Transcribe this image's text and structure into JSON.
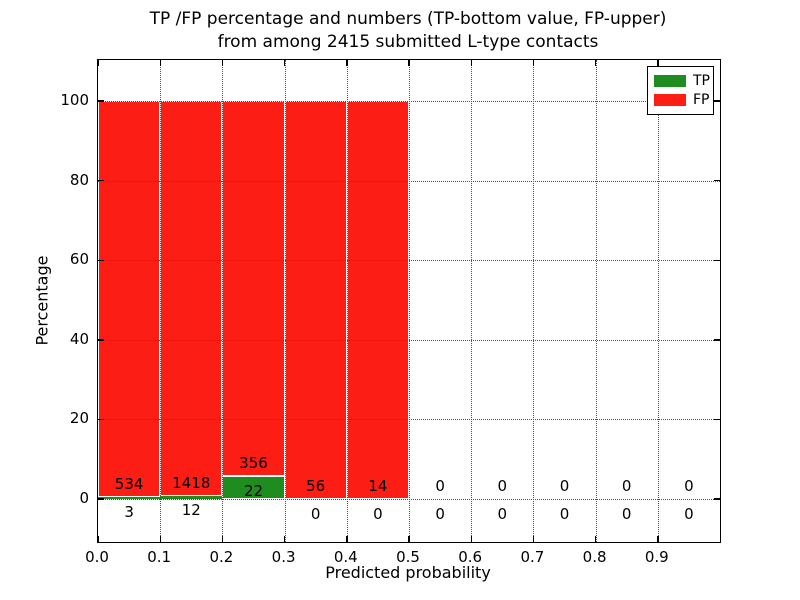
{
  "title": {
    "line1": "TP /FP percentage and numbers (TP-bottom value, FP-upper)",
    "line2": "from among 2415 submitted L-type contacts"
  },
  "axes": {
    "xlabel": "Predicted probability",
    "ylabel": "Percentage"
  },
  "chart_data": {
    "type": "bar",
    "stacked": true,
    "title": "TP /FP percentage and numbers (TP-bottom value, FP-upper) from among 2415 submitted L-type contacts",
    "xlabel": "Predicted probability",
    "ylabel": "Percentage",
    "total_submitted_contacts": 2415,
    "xlim": [
      0.0,
      1.0
    ],
    "ylim": [
      -10.8,
      110.3
    ],
    "x_ticks": [
      0.0,
      0.1,
      0.2,
      0.3,
      0.4,
      0.5,
      0.6,
      0.7,
      0.8,
      0.9
    ],
    "y_ticks": [
      0,
      20,
      40,
      60,
      80,
      100
    ],
    "grid": "dotted",
    "bin_width": 0.1,
    "annotation_note": "FP count printed above baseline, TP count printed below",
    "bins": [
      {
        "range": "0.0-0.1",
        "tp_count": 3,
        "fp_count": 534,
        "tp_pct": 0.56,
        "fp_pct": 99.44
      },
      {
        "range": "0.1-0.2",
        "tp_count": 12,
        "fp_count": 1418,
        "tp_pct": 0.84,
        "fp_pct": 99.16
      },
      {
        "range": "0.2-0.3",
        "tp_count": 22,
        "fp_count": 356,
        "tp_pct": 5.82,
        "fp_pct": 94.18
      },
      {
        "range": "0.3-0.4",
        "tp_count": 0,
        "fp_count": 56,
        "tp_pct": 0,
        "fp_pct": 100
      },
      {
        "range": "0.4-0.5",
        "tp_count": 0,
        "fp_count": 14,
        "tp_pct": 0,
        "fp_pct": 100
      },
      {
        "range": "0.5-0.6",
        "tp_count": 0,
        "fp_count": 0,
        "tp_pct": 0,
        "fp_pct": 0
      },
      {
        "range": "0.6-0.7",
        "tp_count": 0,
        "fp_count": 0,
        "tp_pct": 0,
        "fp_pct": 0
      },
      {
        "range": "0.7-0.8",
        "tp_count": 0,
        "fp_count": 0,
        "tp_pct": 0,
        "fp_pct": 0
      },
      {
        "range": "0.8-0.9",
        "tp_count": 0,
        "fp_count": 0,
        "tp_pct": 0,
        "fp_pct": 0
      },
      {
        "range": "0.9-1.0",
        "tp_count": 0,
        "fp_count": 0,
        "tp_pct": 0,
        "fp_pct": 0
      }
    ],
    "legend": {
      "position": "upper right",
      "entries": [
        {
          "label": "TP",
          "color": "#1e8c1e"
        },
        {
          "label": "FP",
          "color": "#fc1e14"
        }
      ]
    },
    "colors": {
      "tp": "#1e8c1e",
      "fp": "#fc1e14",
      "bar_edge": "#ffffff",
      "grid": "#4f4f4f",
      "text": "#000000",
      "background": "#ffffff"
    }
  }
}
